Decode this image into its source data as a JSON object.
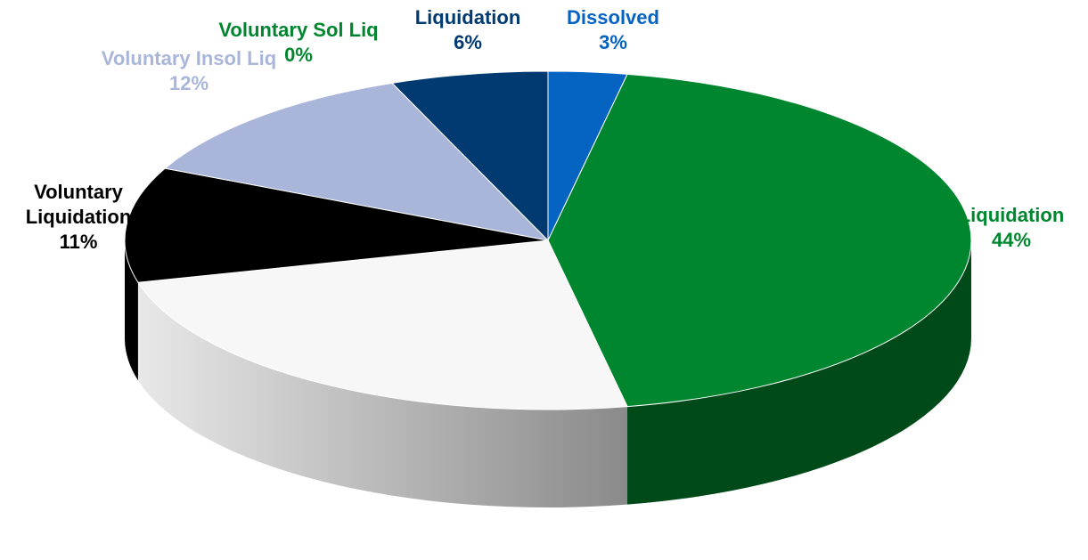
{
  "chart_data": {
    "type": "pie",
    "categories": [
      "Dissolved",
      "Liquidation",
      null,
      "Voluntary Liquidation",
      "Voluntary Insol Liq",
      "Voluntary Sol Liq",
      "Liquidation"
    ],
    "values": [
      3,
      44,
      24,
      11,
      12,
      0,
      6
    ],
    "value_labels": [
      "3%",
      "44%",
      null,
      "11%",
      "12%",
      "0%",
      "6%"
    ],
    "colors": [
      "#0563c1",
      "#00862f",
      "#f7f7f7",
      "#000000",
      "#a9b6da",
      "#00862f",
      "#003a70"
    ]
  }
}
